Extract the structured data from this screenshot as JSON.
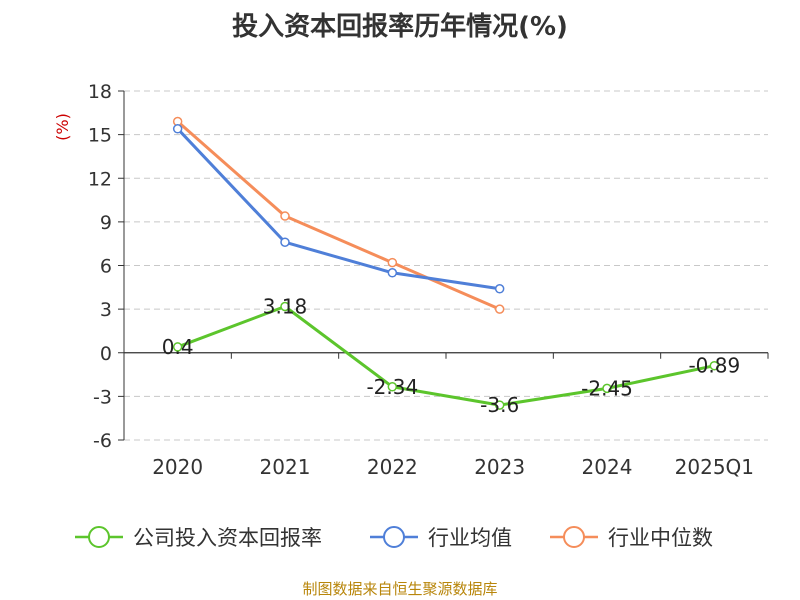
{
  "chart_data": {
    "type": "line",
    "title": "投入资本回报率历年情况(%)",
    "ylabel": "(%)",
    "xlabel": "",
    "categories": [
      "2020",
      "2021",
      "2022",
      "2023",
      "2024",
      "2025Q1"
    ],
    "ylim": [
      -6,
      18
    ],
    "yticks": [
      18,
      15,
      12,
      9,
      6,
      3,
      0,
      -3,
      -6
    ],
    "grid": true,
    "legend_position": "bottom",
    "series": [
      {
        "name": "公司投入资本回报率",
        "color": "#5cc52c",
        "values": [
          0.4,
          3.18,
          -2.34,
          -3.6,
          -2.45,
          -0.89
        ],
        "labels": [
          "0.4",
          "3.18",
          "-2.34",
          "-3.6",
          "-2.45",
          "-0.89"
        ]
      },
      {
        "name": "行业均值",
        "color": "#4f7fd8",
        "values": [
          15.4,
          7.6,
          5.5,
          4.4,
          null,
          null
        ]
      },
      {
        "name": "行业中位数",
        "color": "#f58d5a",
        "values": [
          15.9,
          9.4,
          6.2,
          3.0,
          null,
          null
        ]
      }
    ]
  },
  "footer": {
    "source": "制图数据来自恒生聚源数据库"
  }
}
